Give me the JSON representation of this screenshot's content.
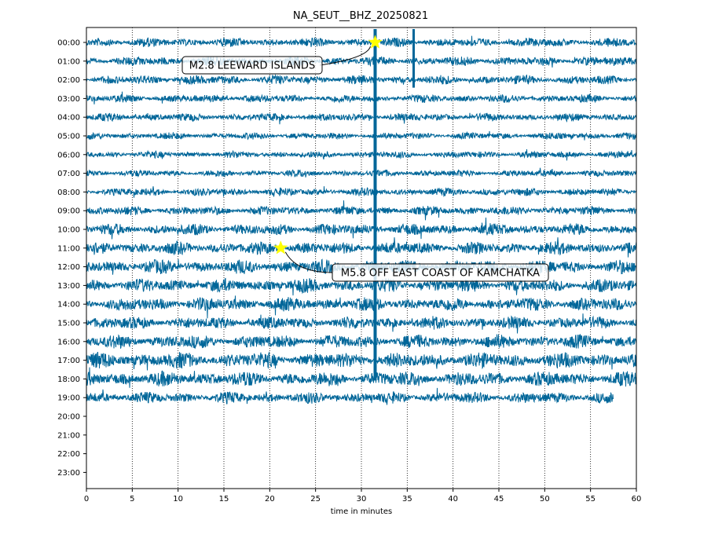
{
  "chart_data": {
    "type": "line",
    "title": "NA_SEUT__BHZ_20250821",
    "xlabel": "time in minutes",
    "ylabel": "",
    "xlim": [
      0,
      60
    ],
    "x_ticks": [
      "0",
      "5",
      "10",
      "15",
      "20",
      "25",
      "30",
      "35",
      "40",
      "45",
      "50",
      "55",
      "60"
    ],
    "y_ticks": [
      "00:00",
      "01:00",
      "02:00",
      "03:00",
      "04:00",
      "05:00",
      "06:00",
      "07:00",
      "08:00",
      "09:00",
      "10:00",
      "11:00",
      "12:00",
      "13:00",
      "14:00",
      "15:00",
      "16:00",
      "17:00",
      "18:00",
      "19:00",
      "20:00",
      "21:00",
      "22:00",
      "23:00"
    ],
    "grid": "vertical dotted",
    "trace_color": "#006699",
    "rows_with_data": 20,
    "last_row_end_minute": 57.5,
    "annotations": [
      {
        "text": "M2.8 LEEWARD ISLANDS",
        "row": "00:00",
        "minute": 31.5,
        "marker": "star",
        "marker_color": "#ffff00"
      },
      {
        "text": "M5.8 OFF EAST COAST OF KAMCHATKA",
        "row": "11:00",
        "minute": 21.2,
        "marker": "star",
        "marker_color": "#ffff00"
      }
    ]
  }
}
